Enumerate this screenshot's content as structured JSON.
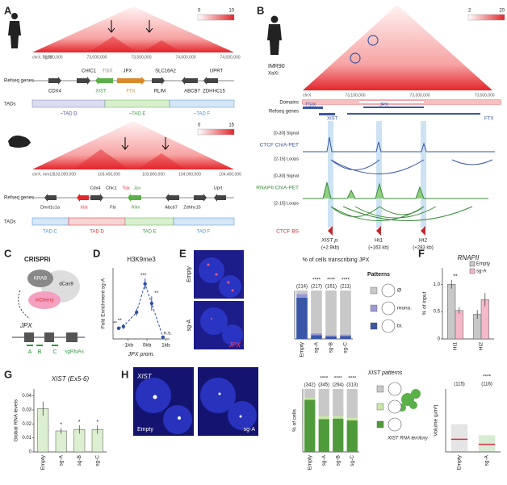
{
  "panels": {
    "A": {
      "label": "A",
      "human": {
        "colorbar": [
          0,
          10
        ],
        "chrom": "chrX, hg19",
        "coords": [
          "72,500,000",
          "73,000,000",
          "73,500,000",
          "74,000,000",
          "74,500,000"
        ],
        "genes": [
          "CHIC1",
          "TSIX",
          "JPX",
          "SLC16A2",
          "CDX4",
          "XIST",
          "FTX",
          "RLIM",
          "ABCB7",
          "ZDHHC15",
          "UPRT"
        ],
        "tads": [
          "~TAD D",
          "~TAD E",
          "~TAD F"
        ]
      },
      "mouse": {
        "colorbar": [
          0,
          15
        ],
        "chrom": "chrX, mm10",
        "coords": [
          "103,000,000",
          "103,400,000",
          "103,800,000",
          "104,000,000",
          "104,400,000"
        ],
        "genes": [
          "Cdx4",
          "Chic1",
          "Tsix",
          "Jpx",
          "Dmrt1c1a",
          "Xist",
          "Ftx",
          "Rlim",
          "Abcb7",
          "Zdhhc15",
          "Uprt"
        ],
        "tads": [
          "TAD C",
          "TAD D",
          "TAD E",
          "TAD F"
        ]
      },
      "refseq_label": "Refseq genes",
      "tads_label": "TADs"
    },
    "B": {
      "label": "B",
      "cell": "IMR90",
      "xaxi": "XaXi",
      "colorbar": [
        2,
        20
      ],
      "chrom": "chrX",
      "coords": [
        "73,100,000",
        "73,300,000",
        "73,500,000"
      ],
      "domains": "Domains",
      "refseq": "Refseq genes",
      "genes": [
        "TSIX",
        "JPX",
        "XIST",
        "FTX"
      ],
      "ctcf": "CTCF ChIA-PET",
      "rnapii": "RNAPII ChIA-PET",
      "signal": "[0-30] Signal",
      "loops": "[2-15] Loops",
      "ctcf_bs": "CTCF BS",
      "sites": [
        {
          "name": "XIST p.",
          "dist": "(+2.9kb)"
        },
        {
          "name": "Ht1",
          "dist": "(+163 kb)"
        },
        {
          "name": "Ht2",
          "dist": "(+283 kb)"
        }
      ]
    },
    "C": {
      "label": "C",
      "title": "CRISPRi",
      "krab": "KRAB",
      "dcas9": "dCas9",
      "mcherry": "mCherry",
      "gene": "JPX",
      "sgrna_sites": [
        "A",
        "B",
        "C"
      ],
      "sgrnas": "sgRNAs"
    },
    "D": {
      "label": "D",
      "chart": {
        "type": "line",
        "title": "H3K9me3",
        "ylabel": "Fold Enrichment sg-A",
        "xlabel": "JPX prom.",
        "x": [
          -1.5,
          -1.25,
          -0.55,
          -0.1,
          0.25,
          0.85
        ],
        "values": [
          6,
          7,
          15,
          31,
          20,
          1
        ],
        "errors": [
          1,
          1.5,
          2,
          3,
          4,
          0.5
        ],
        "annotations": [
          "**",
          "**",
          null,
          "***",
          "**",
          "n.s."
        ],
        "xlim": [
          -1.8,
          1.2
        ],
        "xticks": [
          {
            "value": -1,
            "label": "-1kb"
          },
          {
            "value": 0,
            "label": "0kb"
          },
          {
            "value": 1,
            "label": "1kb"
          }
        ],
        "ylim": [
          0,
          40
        ],
        "color": "#2f4fa8"
      }
    },
    "E": {
      "label": "E",
      "images": [
        "Empty",
        "sg-A"
      ],
      "probe": "JPX",
      "chart": {
        "type": "stacked-bar",
        "title": "% of cells transcribing JPX",
        "categories": [
          "Empty",
          "sg-A",
          "sg-B",
          "sg-C"
        ],
        "counts": [
          "(214)",
          "(217)",
          "(161)",
          "(211)"
        ],
        "stars": [
          null,
          "****",
          "****",
          "****"
        ],
        "series": [
          {
            "name": "bi.",
            "color": "#3a57a7",
            "values": [
              85,
              8,
              5,
              6
            ]
          },
          {
            "name": "mono.",
            "color": "#9a9ad6",
            "values": [
              8,
              4,
              3,
              3
            ]
          },
          {
            "name": "Ø",
            "color": "#c8c8c8",
            "values": [
              7,
              88,
              92,
              91
            ]
          }
        ],
        "ylim": [
          0,
          100
        ],
        "legend_title": "Patterns"
      }
    },
    "F": {
      "label": "F",
      "chart": {
        "type": "bar",
        "title": "RNAPII",
        "ylabel": "% of input",
        "categories": [
          "Ht1",
          "Ht2"
        ],
        "series": [
          {
            "name": "Empty",
            "color": "#c8c8c8",
            "values": [
              1.0,
              0.45
            ],
            "errors": [
              0.08,
              0.08
            ]
          },
          {
            "name": "sg-A",
            "color": "#f5b8c8",
            "values": [
              0.52,
              0.72
            ],
            "errors": [
              0.06,
              0.12
            ]
          }
        ],
        "stars": [
          "**",
          null
        ],
        "ylim": [
          0,
          1.3
        ],
        "yticks": [
          0,
          0.5,
          {
            "value": 1,
            "label": "1.0"
          }
        ]
      }
    },
    "G": {
      "label": "G",
      "chart": {
        "type": "bar",
        "title": "XIST (Ex5-6)",
        "ylabel": "Global RNA levels",
        "categories": [
          "Empty",
          "sg-A",
          "sg-B",
          "sg-C"
        ],
        "values": [
          0.031,
          0.015,
          0.016,
          0.016
        ],
        "errors": [
          0.005,
          0.002,
          0.003,
          0.003
        ],
        "stars": [
          null,
          "*",
          "*",
          "*"
        ],
        "color": "#dcefd0",
        "ylim": [
          0,
          0.045
        ],
        "yticks": [
          0,
          0.01,
          0.02,
          0.03,
          0.04
        ]
      }
    },
    "H": {
      "label": "H",
      "images": [
        "Empty",
        "sg-A"
      ],
      "probe": "XIST",
      "territory": "XIST RNA territory",
      "chart": {
        "type": "stacked-bar",
        "ylabel": "% of cells",
        "categories": [
          "Empty",
          "sg-A",
          "sg-B",
          "sg-C"
        ],
        "counts": [
          "(342)",
          "(345)",
          "(264)",
          "(313)"
        ],
        "stars": [
          null,
          "****",
          "****",
          "****"
        ],
        "series": [
          {
            "color": "#4f9a3a",
            "values": [
              83,
              52,
              53,
              50
            ]
          },
          {
            "color": "#c9e6a8",
            "values": [
              3,
              5,
              4,
              4
            ]
          },
          {
            "color": "#c8c8c8",
            "values": [
              14,
              43,
              43,
              46
            ]
          }
        ],
        "ylim": [
          0,
          100
        ],
        "legend_title": "XIST patterns"
      },
      "volume": {
        "type": "dot",
        "ylabel": "Volume (μm³)",
        "categories": [
          "Empty",
          "sg-A"
        ],
        "counts": [
          "(115)",
          "(116)"
        ],
        "stars": "****",
        "medians": [
          5,
          3
        ],
        "ylim": [
          0,
          25
        ],
        "colors": [
          "#999999",
          "#5bb04a"
        ],
        "median_color": "#e0304a"
      }
    }
  }
}
